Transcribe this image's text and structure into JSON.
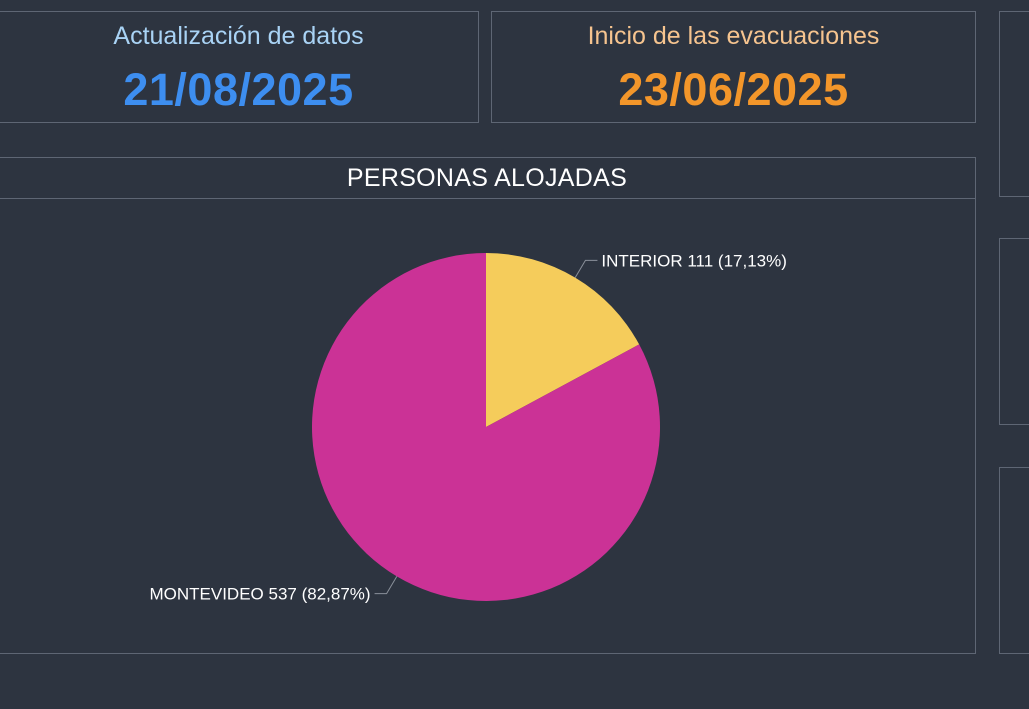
{
  "cards": {
    "update": {
      "label": "Actualización de datos",
      "value": "21/08/2025",
      "label_color": "#a9d3f5",
      "value_color": "#3d8ef0"
    },
    "start": {
      "label": "Inicio de las evacuaciones",
      "value": "23/06/2025",
      "label_color": "#f6c48f",
      "value_color": "#f3962a"
    }
  },
  "chart_data": {
    "type": "pie",
    "title": "PERSONAS ALOJADAS",
    "slices": [
      {
        "label": "INTERIOR",
        "value": 111,
        "percent": "17,13%",
        "color": "#f5cc5b",
        "data_label": "INTERIOR 111 (17,13%)"
      },
      {
        "label": "MONTEVIDEO",
        "value": 537,
        "percent": "82,87%",
        "color": "#cb3296",
        "data_label": "MONTEVIDEO 537 (82,87%)"
      }
    ]
  }
}
